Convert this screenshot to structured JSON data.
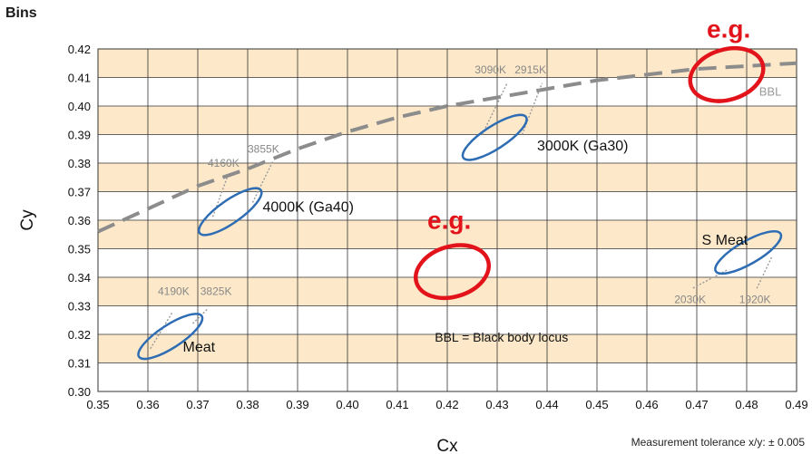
{
  "chart_data": {
    "type": "scatter",
    "title": "Bins",
    "xlabel": "Cx",
    "ylabel": "Cy",
    "xlim": [
      0.35,
      0.49
    ],
    "ylim": [
      0.3,
      0.42
    ],
    "x_ticks": [
      "0.35",
      "0.36",
      "0.37",
      "0.38",
      "0.39",
      "0.40",
      "0.41",
      "0.42",
      "0.43",
      "0.44",
      "0.45",
      "0.46",
      "0.47",
      "0.48",
      "0.49"
    ],
    "y_ticks": [
      "0.30",
      "0.31",
      "0.32",
      "0.33",
      "0.34",
      "0.35",
      "0.36",
      "0.37",
      "0.38",
      "0.39",
      "0.40",
      "0.41",
      "0.42"
    ],
    "grid": true,
    "bbl_label": "BBL",
    "bbl_curve": [
      [
        0.35,
        0.356
      ],
      [
        0.36,
        0.364
      ],
      [
        0.37,
        0.372
      ],
      [
        0.38,
        0.378
      ],
      [
        0.39,
        0.385
      ],
      [
        0.4,
        0.391
      ],
      [
        0.41,
        0.396
      ],
      [
        0.42,
        0.4
      ],
      [
        0.43,
        0.403
      ],
      [
        0.44,
        0.406
      ],
      [
        0.45,
        0.409
      ],
      [
        0.46,
        0.411
      ],
      [
        0.47,
        0.413
      ],
      [
        0.48,
        0.414
      ],
      [
        0.49,
        0.415
      ]
    ],
    "bins": [
      {
        "name": "Meat",
        "cx": 0.3645,
        "cy": 0.3193,
        "rx": 0.0075,
        "ry": 0.004,
        "angle": 33,
        "cct": [
          {
            "label": "4190K",
            "line": [
              [
                0.3605,
                0.315
              ],
              [
                0.365,
                0.328
              ]
            ]
          },
          {
            "label": "3825K",
            "line": [
              [
                0.369,
                0.3238
              ],
              [
                0.372,
                0.329
              ]
            ]
          }
        ]
      },
      {
        "name": "4000K (Ga40)",
        "cx": 0.3765,
        "cy": 0.363,
        "rx": 0.0075,
        "ry": 0.004,
        "angle": 35,
        "cct": [
          {
            "label": "4160K",
            "line": [
              [
                0.373,
                0.3612
              ],
              [
                0.376,
                0.3755
              ]
            ]
          },
          {
            "label": "3855K",
            "line": [
              [
                0.381,
                0.3662
              ],
              [
                0.385,
                0.3805
              ]
            ]
          }
        ]
      },
      {
        "name": "3000K (Ga30)",
        "cx": 0.4295,
        "cy": 0.389,
        "rx": 0.0075,
        "ry": 0.004,
        "angle": 33,
        "cct": [
          {
            "label": "3090K",
            "line": [
              [
                0.427,
                0.39
              ],
              [
                0.432,
                0.408
              ]
            ]
          },
          {
            "label": "2915K",
            "line": [
              [
                0.435,
                0.39
              ],
              [
                0.439,
                0.408
              ]
            ]
          }
        ]
      },
      {
        "name": "S Meat",
        "cx": 0.4803,
        "cy": 0.3487,
        "rx": 0.0075,
        "ry": 0.004,
        "angle": 30,
        "cct": [
          {
            "label": "2030K",
            "line": [
              [
                0.476,
                0.3425
              ],
              [
                0.469,
                0.336
              ]
            ]
          },
          {
            "label": "1920K",
            "line": [
              [
                0.485,
                0.347
              ],
              [
                0.482,
                0.336
              ]
            ]
          }
        ]
      }
    ],
    "highlights": [
      {
        "label": "e.g.",
        "cx": 0.421,
        "cy": 0.342,
        "rx": 0.0075,
        "ry": 0.004,
        "angle": 55
      },
      {
        "label": "e.g.",
        "cx": 0.476,
        "cy": 0.411,
        "rx": 0.0075,
        "ry": 0.004,
        "angle": 55
      }
    ],
    "annotation": "BBL = Black body locus",
    "footnote": "Measurement tolerance x/y: ± 0.005",
    "colors": {
      "stripe": "#fde9c9",
      "grid": "#333333",
      "bin": "#2e6db4",
      "highlight": "#e2131a",
      "bbl": "#8c8c8c",
      "cct_line": "#999999",
      "cct_text": "#888888"
    }
  }
}
